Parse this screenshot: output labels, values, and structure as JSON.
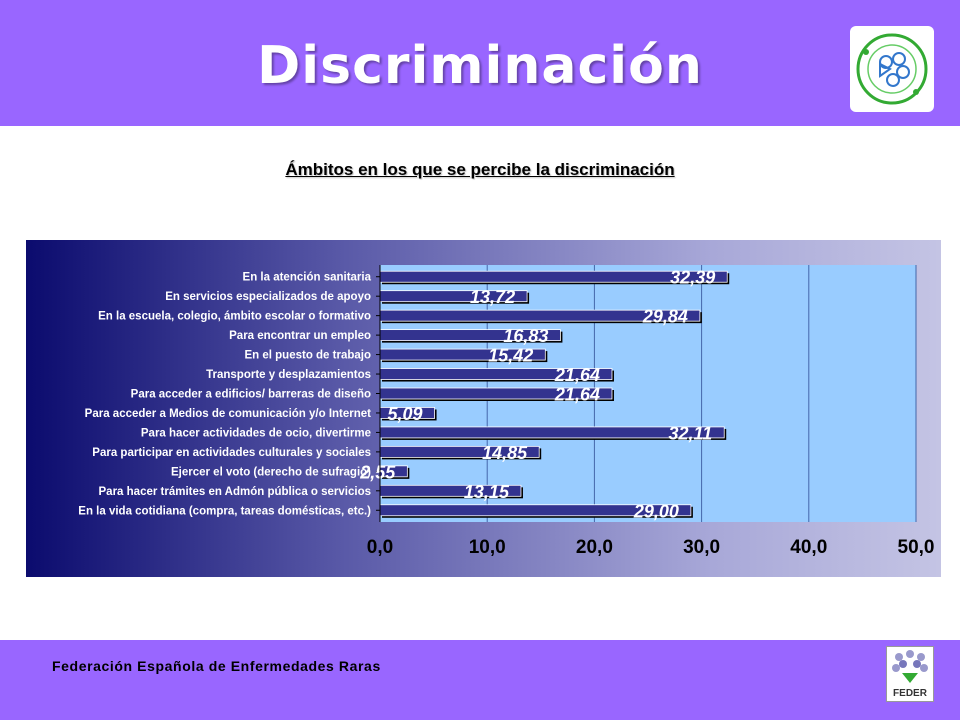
{
  "header": {
    "title": "Discriminación"
  },
  "chart_data": {
    "type": "bar",
    "orientation": "horizontal",
    "title": "Ámbitos en los que se percibe la discriminación",
    "categories": [
      "En la atención sanitaria",
      "En servicios especializados de apoyo",
      "En la escuela, colegio, ámbito escolar o formativo",
      "Para encontrar un empleo",
      "En el puesto de trabajo",
      "Transporte y desplazamientos",
      "Para acceder a edificios/ barreras de diseño",
      "Para acceder a Medios de comunicación y/o Internet",
      "Para hacer actividades de ocio, divertirme",
      "Para participar en actividades culturales y sociales",
      "Ejercer el voto (derecho de sufragio)",
      "Para hacer trámites en Admón pública o servicios",
      "En la vida cotidiana (compra, tareas domésticas, etc.)"
    ],
    "values": [
      32.39,
      13.72,
      29.84,
      16.83,
      15.42,
      21.64,
      21.64,
      5.09,
      32.11,
      14.85,
      2.55,
      13.15,
      29.0
    ],
    "data_labels": [
      "32,39",
      "13,72",
      "29,84",
      "16,83",
      "15,42",
      "21,64",
      "21,64",
      "5,09",
      "32,11",
      "14,85",
      "2,55",
      "13,15",
      "29,00"
    ],
    "xlim": [
      0,
      50
    ],
    "ticks": [
      "0,0",
      "10,0",
      "20,0",
      "30,0",
      "40,0",
      "50,0"
    ],
    "grid": true,
    "colors": {
      "bar": "#33338f",
      "plot_bg": "#99ccff",
      "gridline": "#4466aa",
      "label_text": "#ffffff"
    }
  },
  "footer": {
    "organization": "Federación Española de Enfermedades Raras"
  },
  "logos": {
    "bottom_text": "FEDER"
  }
}
